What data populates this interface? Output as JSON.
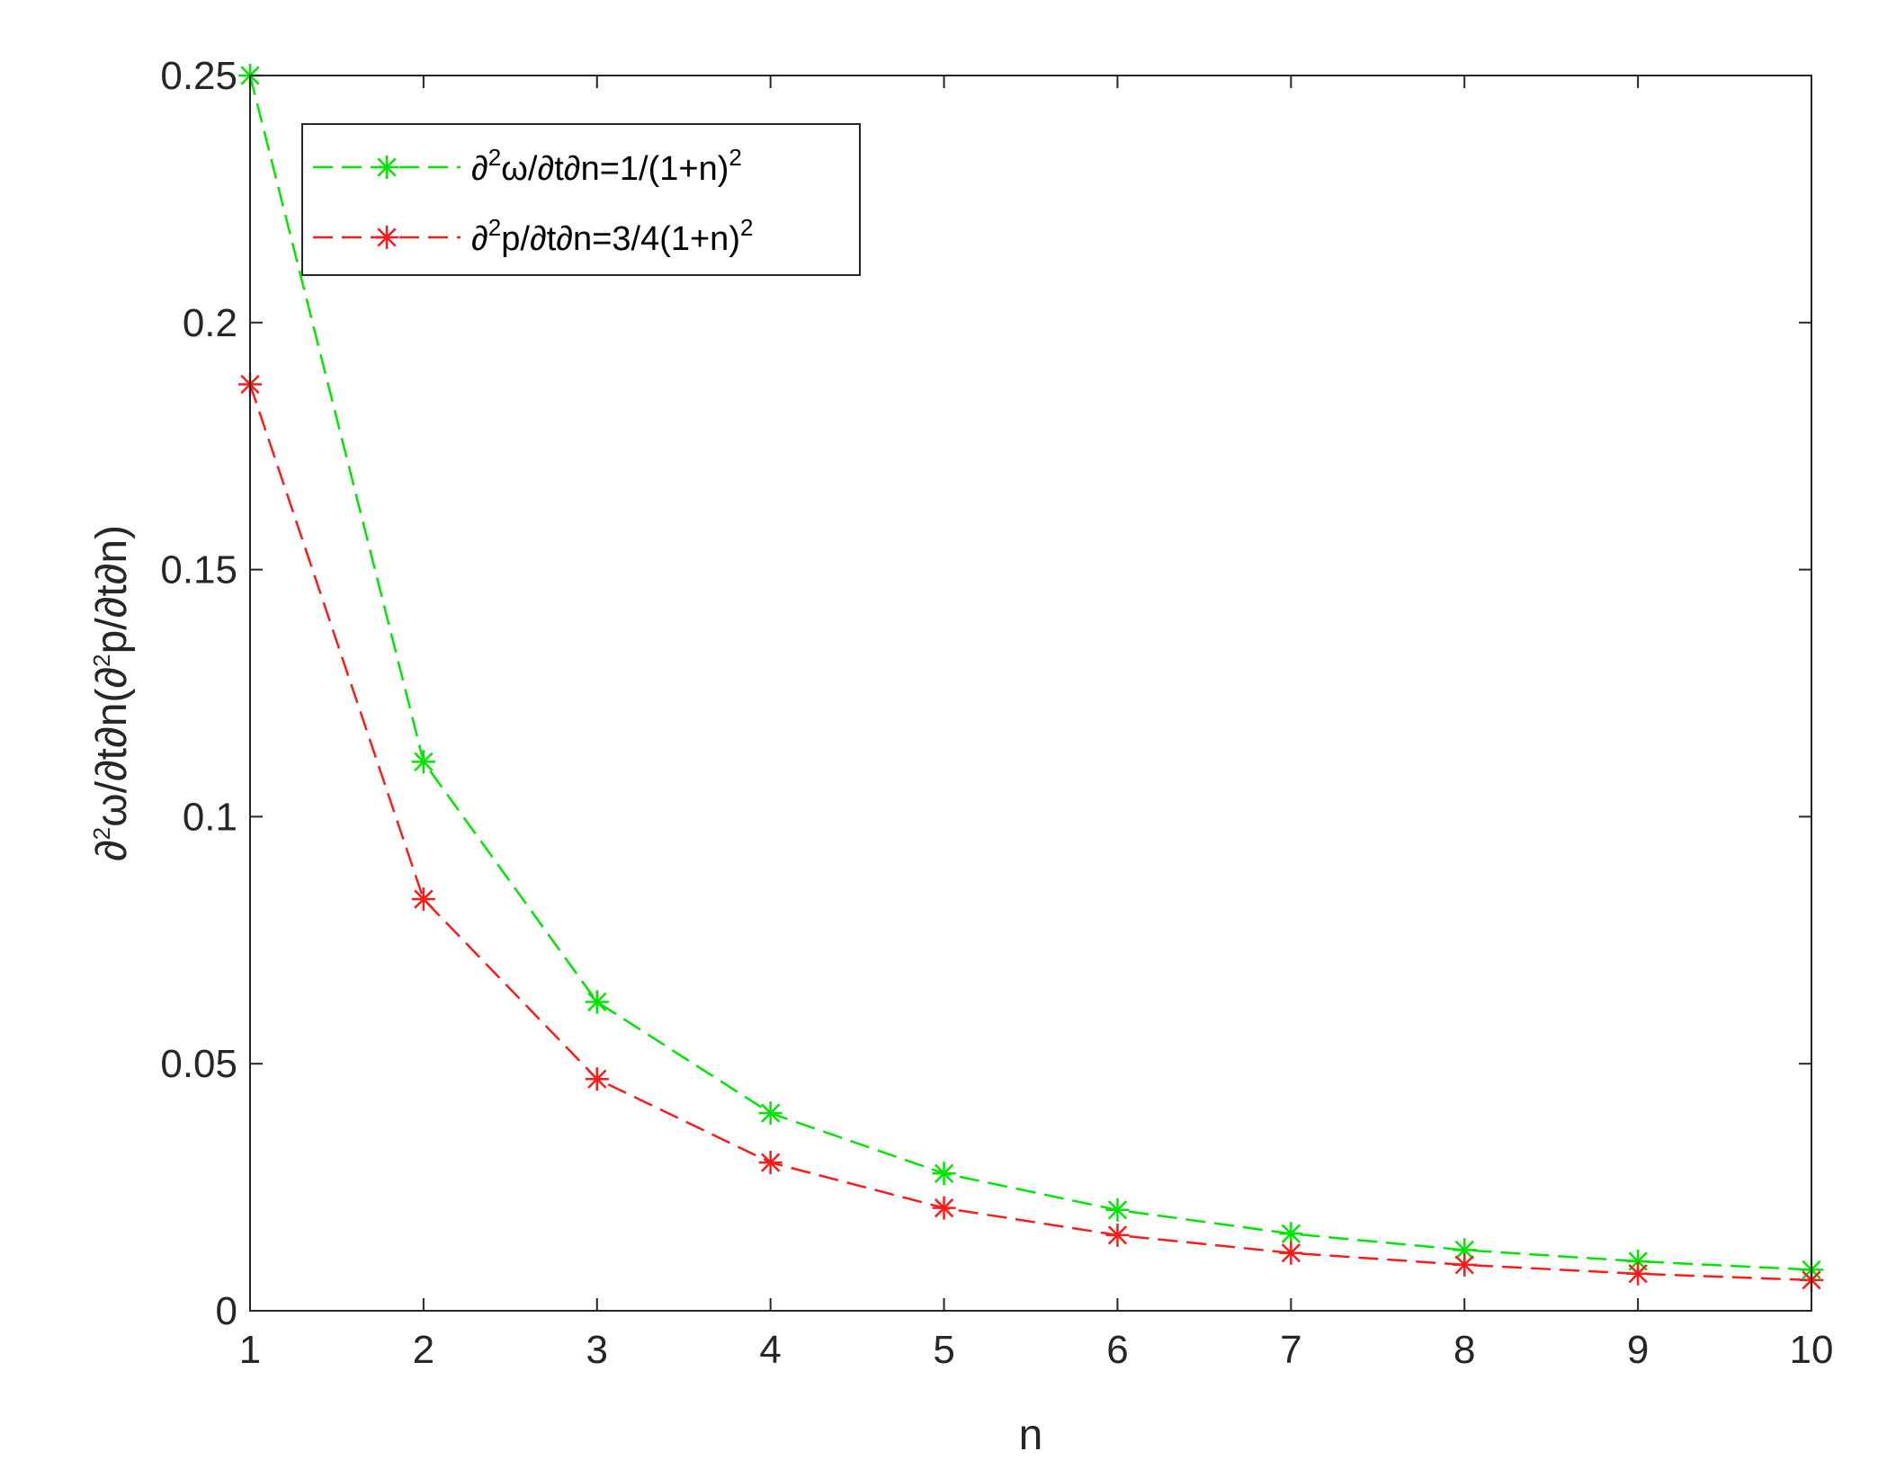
{
  "chart_data": {
    "type": "line",
    "title": "",
    "xlabel": "n",
    "ylabel": "∂²ω/∂t∂n(∂²p/∂t∂n)",
    "ylabel_parts": {
      "a": "∂",
      "sup1": "2",
      "b": "ω/∂t∂n(∂",
      "sup2": "2",
      "c": "p/∂t∂n)"
    },
    "xlim": [
      1,
      10
    ],
    "ylim": [
      0,
      0.25
    ],
    "x_ticks": [
      "1",
      "2",
      "3",
      "4",
      "5",
      "6",
      "7",
      "8",
      "9",
      "10"
    ],
    "y_ticks": [
      "0",
      "0.05",
      "0.1",
      "0.15",
      "0.2",
      "0.25"
    ],
    "y_tick_values": [
      0,
      0.05,
      0.1,
      0.15,
      0.2,
      0.25
    ],
    "grid": false,
    "legend_position": "top-left",
    "x": [
      1,
      2,
      3,
      4,
      5,
      6,
      7,
      8,
      9,
      10
    ],
    "series": [
      {
        "name": "∂²ω/∂t∂n=1/(1+n)²",
        "legend_parts": {
          "a": "∂",
          "sup1": "2",
          "b": "ω/∂t∂n=1/(1+n)",
          "sup2": "2"
        },
        "color": "#00e600",
        "marker": "asterisk",
        "line_style": "dashed",
        "values": [
          0.25,
          0.1111,
          0.0625,
          0.04,
          0.0278,
          0.0204,
          0.0156,
          0.0123,
          0.01,
          0.0083
        ]
      },
      {
        "name": "∂²p/∂t∂n=3/4(1+n)²",
        "legend_parts": {
          "a": "∂",
          "sup1": "2",
          "b": "p/∂t∂n=3/4(1+n)",
          "sup2": "2"
        },
        "color": "#ff1a1a",
        "marker": "asterisk",
        "line_style": "dashed",
        "values": [
          0.1875,
          0.0833,
          0.0469,
          0.03,
          0.0208,
          0.0153,
          0.0117,
          0.0093,
          0.0075,
          0.0062
        ]
      }
    ]
  }
}
